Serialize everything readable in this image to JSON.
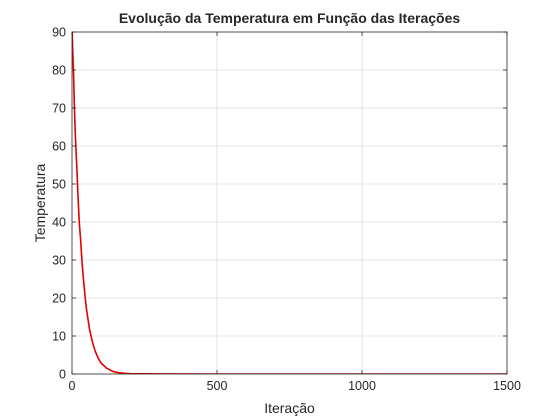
{
  "chart_data": {
    "type": "line",
    "title": "Evolução da Temperatura em Função das Iterações",
    "xlabel": "Iteração",
    "ylabel": "Temperatura",
    "xlim": [
      0,
      1500
    ],
    "ylim": [
      0,
      90
    ],
    "xticks": [
      0,
      500,
      1000,
      1500
    ],
    "yticks": [
      0,
      10,
      20,
      30,
      40,
      50,
      60,
      70,
      80,
      90
    ],
    "grid": true,
    "line_color": "#e00000",
    "series": [
      {
        "x": [
          0,
          2,
          5,
          8,
          10,
          12,
          15,
          18,
          20,
          25,
          30,
          35,
          40,
          45,
          50,
          60,
          70,
          80,
          90,
          100,
          120,
          140,
          160,
          180,
          200,
          300,
          500,
          800,
          1000,
          1200,
          1500
        ],
        "values": [
          93,
          86,
          80,
          71,
          66,
          62,
          57,
          52,
          48,
          40,
          35,
          29,
          24.5,
          20.5,
          17,
          12,
          8.5,
          6,
          4.2,
          2.9,
          1.5,
          0.7,
          0.35,
          0.18,
          0.09,
          0.02,
          0,
          0,
          0,
          0,
          0
        ]
      }
    ]
  }
}
